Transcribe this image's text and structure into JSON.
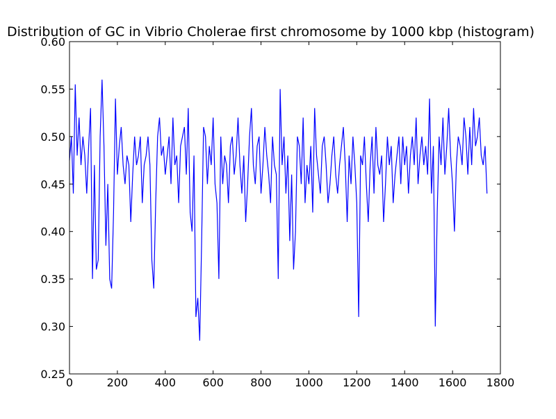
{
  "chart_data": {
    "type": "line",
    "title": "Distribution of GC in Vibrio Cholerae first chromosome by 1000 kbp (histogram)",
    "xlabel": "",
    "ylabel": "",
    "xlim": [
      0,
      1800
    ],
    "ylim": [
      0.25,
      0.6
    ],
    "grid": false,
    "xticks": [
      "0",
      "200",
      "400",
      "600",
      "800",
      "1000",
      "1200",
      "1400",
      "1600",
      "1800"
    ],
    "yticks": [
      "0.25",
      "0.30",
      "0.35",
      "0.40",
      "0.45",
      "0.50",
      "0.55",
      "0.60"
    ],
    "series_color": "#0000ff",
    "series": [
      {
        "x_start": 0,
        "x_step": 8,
        "values": [
          0.475,
          0.5,
          0.44,
          0.555,
          0.48,
          0.52,
          0.47,
          0.5,
          0.48,
          0.44,
          0.49,
          0.53,
          0.35,
          0.47,
          0.36,
          0.37,
          0.5,
          0.56,
          0.49,
          0.385,
          0.45,
          0.35,
          0.34,
          0.42,
          0.54,
          0.46,
          0.49,
          0.51,
          0.47,
          0.45,
          0.48,
          0.47,
          0.41,
          0.46,
          0.5,
          0.47,
          0.48,
          0.5,
          0.43,
          0.47,
          0.48,
          0.5,
          0.47,
          0.37,
          0.34,
          0.43,
          0.5,
          0.52,
          0.48,
          0.49,
          0.46,
          0.48,
          0.5,
          0.45,
          0.52,
          0.47,
          0.48,
          0.43,
          0.49,
          0.5,
          0.51,
          0.46,
          0.53,
          0.42,
          0.4,
          0.48,
          0.31,
          0.33,
          0.285,
          0.39,
          0.51,
          0.5,
          0.45,
          0.49,
          0.47,
          0.52,
          0.45,
          0.43,
          0.35,
          0.5,
          0.45,
          0.48,
          0.47,
          0.43,
          0.49,
          0.5,
          0.46,
          0.48,
          0.52,
          0.47,
          0.44,
          0.48,
          0.41,
          0.45,
          0.5,
          0.53,
          0.47,
          0.45,
          0.49,
          0.5,
          0.44,
          0.47,
          0.51,
          0.48,
          0.46,
          0.43,
          0.5,
          0.47,
          0.46,
          0.35,
          0.55,
          0.47,
          0.5,
          0.44,
          0.48,
          0.39,
          0.46,
          0.36,
          0.4,
          0.5,
          0.49,
          0.45,
          0.52,
          0.43,
          0.47,
          0.45,
          0.49,
          0.42,
          0.53,
          0.48,
          0.46,
          0.44,
          0.49,
          0.5,
          0.47,
          0.43,
          0.45,
          0.48,
          0.5,
          0.46,
          0.44,
          0.47,
          0.49,
          0.51,
          0.47,
          0.41,
          0.48,
          0.45,
          0.5,
          0.47,
          0.43,
          0.31,
          0.48,
          0.47,
          0.5,
          0.45,
          0.41,
          0.47,
          0.5,
          0.44,
          0.51,
          0.47,
          0.46,
          0.48,
          0.41,
          0.45,
          0.5,
          0.47,
          0.49,
          0.43,
          0.46,
          0.48,
          0.5,
          0.45,
          0.5,
          0.47,
          0.49,
          0.44,
          0.48,
          0.5,
          0.47,
          0.52,
          0.45,
          0.48,
          0.5,
          0.47,
          0.49,
          0.46,
          0.54,
          0.44,
          0.49,
          0.3,
          0.42,
          0.5,
          0.47,
          0.52,
          0.46,
          0.49,
          0.53,
          0.48,
          0.45,
          0.4,
          0.47,
          0.5,
          0.49,
          0.47,
          0.52,
          0.5,
          0.46,
          0.51,
          0.47,
          0.53,
          0.49,
          0.5,
          0.52,
          0.48,
          0.47,
          0.49,
          0.44
        ]
      }
    ]
  }
}
